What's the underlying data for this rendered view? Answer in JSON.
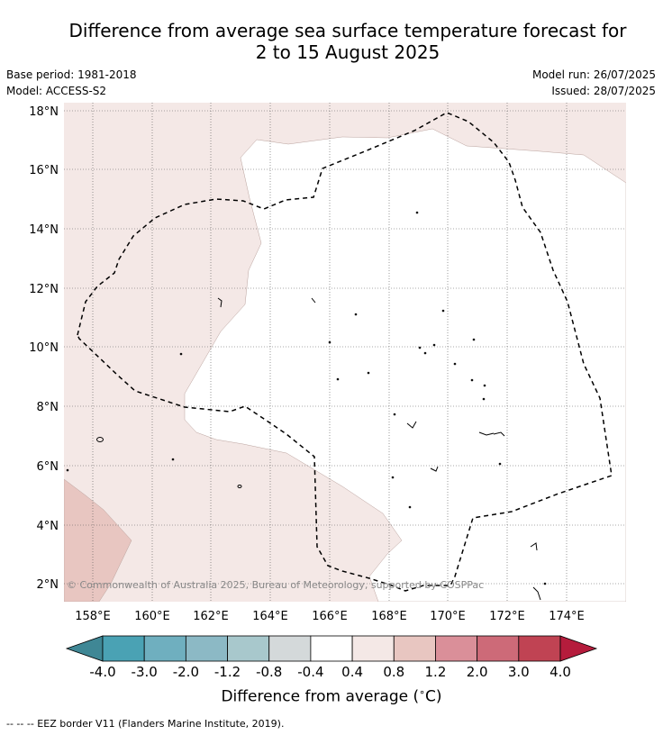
{
  "title": {
    "line1": "Difference from average sea surface temperature forecast for",
    "line2": "2 to 15 August 2025"
  },
  "meta": {
    "base_period": "Base period: 1981-2018",
    "model": "Model: ACCESS-S2",
    "model_run": "Model run: 26/07/2025",
    "issued": "Issued: 28/07/2025"
  },
  "map": {
    "lon_labels": [
      "158°E",
      "160°E",
      "162°E",
      "164°E",
      "166°E",
      "168°E",
      "170°E",
      "172°E",
      "174°E"
    ],
    "lat_labels": [
      "18°N",
      "16°N",
      "14°N",
      "12°N",
      "10°N",
      "8°N",
      "6°N",
      "4°N",
      "2°N"
    ],
    "copyright": "© Commonwealth of Australia 2025, Bureau of Meteorology, supported by COSPPac",
    "zones": [
      {
        "name": "0.4 to 0.8",
        "color": "#f4e8e6"
      },
      {
        "name": "0.8 to 1.2",
        "color": "#e8c6c1"
      },
      {
        "name": "-0.4 to 0.4",
        "color": "#ffffff"
      }
    ]
  },
  "colorbar": {
    "low_color": "#3f8795",
    "high_color": "#b51c3c",
    "bins": [
      {
        "color": "#4aa2b4"
      },
      {
        "color": "#6fafbf"
      },
      {
        "color": "#8cb9c5"
      },
      {
        "color": "#a8c8cc"
      },
      {
        "color": "#d4d9da"
      },
      {
        "color": "#ffffff"
      },
      {
        "color": "#f4e8e6"
      },
      {
        "color": "#e8c6c1"
      },
      {
        "color": "#da8f99"
      },
      {
        "color": "#cd6a78"
      },
      {
        "color": "#c04353"
      }
    ],
    "tick_labels": [
      "-4.0",
      "-3.0",
      "-2.0",
      "-1.2",
      "-0.8",
      "-0.4",
      "0.4",
      "0.8",
      "1.2",
      "2.0",
      "3.0",
      "4.0"
    ],
    "label": "Difference from average (°C)",
    "label_main": "Difference from average (",
    "label_unit": "∘",
    "label_end": "C)"
  },
  "legend": {
    "eez": "-- -- -- EEZ border V11 (Flanders Marine Institute, 2019)."
  }
}
